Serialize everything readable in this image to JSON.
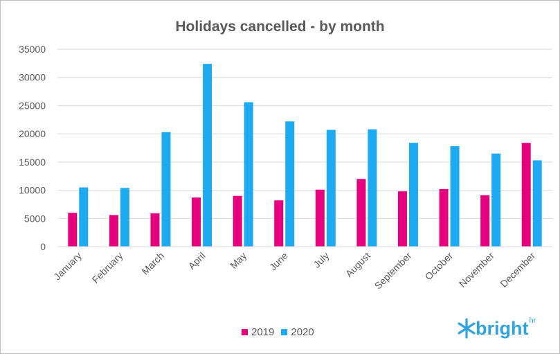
{
  "chart_data": {
    "type": "bar",
    "title": "Holidays cancelled - by month",
    "xlabel": "",
    "ylabel": "",
    "categories": [
      "January",
      "February",
      "March",
      "April",
      "May",
      "June",
      "July",
      "August",
      "September",
      "October",
      "November",
      "December"
    ],
    "series": [
      {
        "name": "2019",
        "color": "#e6007e",
        "values": [
          6000,
          5600,
          5900,
          8700,
          9000,
          8200,
          10100,
          12000,
          9800,
          10200,
          9100,
          18400
        ]
      },
      {
        "name": "2020",
        "color": "#1eaaf1",
        "values": [
          10500,
          10400,
          20300,
          32400,
          25600,
          22200,
          20700,
          20800,
          18400,
          17800,
          16500,
          15300
        ]
      }
    ],
    "ylim": [
      0,
      35000
    ],
    "yticks": [
      0,
      5000,
      10000,
      15000,
      20000,
      25000,
      30000,
      35000
    ],
    "grid": true,
    "legend_position": "bottom"
  },
  "logo": {
    "text": "bright",
    "superscript": "hr",
    "color": "#2ea3dc"
  }
}
